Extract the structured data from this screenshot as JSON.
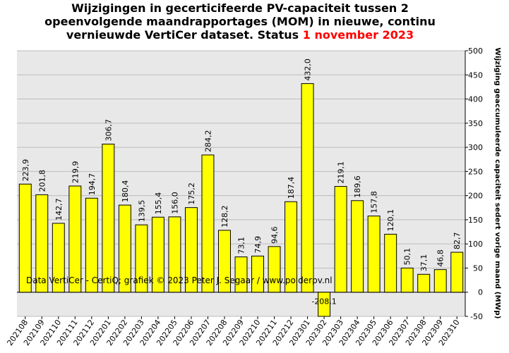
{
  "title": {
    "line1": "Wijzigingen in gecerticifeerde PV-capaciteit tussen 2",
    "line2": "opeenvolgende maandrapportages (MOM) in nieuwe, continu",
    "line3_prefix": "vernieuwde VertiCer dataset. Status ",
    "line3_highlight": "1 november 2023",
    "highlight_color": "#ff0000"
  },
  "chart_data": {
    "type": "bar",
    "categories": [
      "202108",
      "202109",
      "202110",
      "202111",
      "202112",
      "202201",
      "202202",
      "202203",
      "202204",
      "202205",
      "202206",
      "202207",
      "202208",
      "202209",
      "202210",
      "202211",
      "202212",
      "202301",
      "202302",
      "202303",
      "202304",
      "202305",
      "202306",
      "202307",
      "202308",
      "202309",
      "202310"
    ],
    "values": [
      223.9,
      201.8,
      142.7,
      219.9,
      194.7,
      306.7,
      180.4,
      139.5,
      155.4,
      156.0,
      175.2,
      284.2,
      128.2,
      73.1,
      74.9,
      94.6,
      187.4,
      432.0,
      -208.1,
      219.1,
      189.6,
      157.8,
      120.1,
      50.1,
      37.1,
      46.8,
      82.7
    ],
    "data_labels": [
      "223,9",
      "201,8",
      "142,7",
      "219,9",
      "194,7",
      "306,7",
      "180,4",
      "139,5",
      "155,4",
      "156,0",
      "175,2",
      "284,2",
      "128,2",
      "73,1",
      "74,9",
      "94,6",
      "187,4",
      "432,0",
      "-208,1",
      "219,1",
      "189,6",
      "157,8",
      "120,1",
      "50,1",
      "37,1",
      "46,8",
      "82,7"
    ],
    "ylabel": "Wijziging geaccumuleerde capaciteit sedert vorige maand (MWp)",
    "ylim": [
      -50,
      500
    ],
    "yticks": [
      -50,
      0,
      50,
      100,
      150,
      200,
      250,
      300,
      350,
      400,
      450,
      500
    ],
    "y_axis_side": "right",
    "grid": true,
    "bar_color": "#ffff00",
    "plot_background": "#e8e8e8",
    "annotation": "Data VertiCer - CertiQ; grafiek © 2023 Peter J. Segaar / www.polderpv.nl"
  }
}
